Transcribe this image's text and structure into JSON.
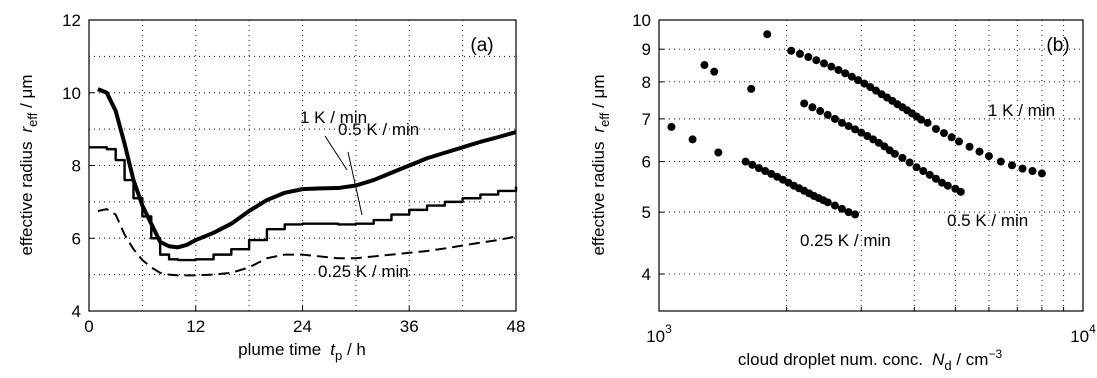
{
  "chart_data": [
    {
      "type": "line",
      "panel_label": "(a)",
      "xlabel": {
        "main": "plume time",
        "var": "t",
        "sub": "p",
        "unit": " / h"
      },
      "ylabel": {
        "main": "effective radius",
        "var": "r",
        "sub": "eff",
        "unit": " / μm"
      },
      "xlim": [
        0,
        48
      ],
      "ylim": [
        4,
        12
      ],
      "xticks": [
        0,
        12,
        24,
        36,
        48
      ],
      "yticks": [
        4,
        6,
        8,
        10,
        12
      ],
      "xgrid": [
        6,
        12,
        18,
        24,
        30,
        36,
        42,
        48
      ],
      "ygrid": [
        5,
        6,
        7,
        8,
        9,
        10,
        11,
        12
      ],
      "series": [
        {
          "name": "1 K / min",
          "style": "thick",
          "x": [
            1,
            2,
            3,
            4,
            5,
            6,
            7,
            8,
            9,
            10,
            11,
            12,
            14,
            16,
            18,
            20,
            22,
            24,
            26,
            28,
            30,
            32,
            34,
            36,
            38,
            40,
            42,
            44,
            46,
            48
          ],
          "y": [
            10.1,
            10.0,
            9.5,
            8.6,
            7.6,
            6.9,
            6.4,
            5.9,
            5.78,
            5.75,
            5.82,
            5.95,
            6.15,
            6.4,
            6.75,
            7.05,
            7.25,
            7.35,
            7.37,
            7.38,
            7.45,
            7.6,
            7.8,
            8.0,
            8.2,
            8.35,
            8.5,
            8.65,
            8.78,
            8.92
          ]
        },
        {
          "name": "0.5 K / min",
          "style": "stepped",
          "x": [
            0,
            2,
            3,
            4,
            5,
            6,
            7,
            8,
            9,
            10,
            12,
            14,
            16,
            18,
            20,
            22,
            24,
            26,
            28,
            30,
            32,
            34,
            36,
            38,
            40,
            42,
            44,
            46,
            48
          ],
          "y": [
            8.5,
            8.45,
            8.15,
            7.6,
            7.1,
            6.6,
            6.0,
            5.55,
            5.42,
            5.4,
            5.42,
            5.55,
            5.7,
            5.95,
            6.25,
            6.38,
            6.4,
            6.4,
            6.38,
            6.4,
            6.5,
            6.65,
            6.78,
            6.9,
            7.0,
            7.1,
            7.2,
            7.3,
            7.42
          ]
        },
        {
          "name": "0.25 K / min",
          "style": "dashed",
          "x": [
            1,
            2,
            3,
            4,
            5,
            6,
            7,
            8,
            9,
            10,
            12,
            14,
            16,
            18,
            20,
            22,
            24,
            26,
            28,
            30,
            32,
            34,
            36,
            38,
            40,
            42,
            44,
            46,
            48
          ],
          "y": [
            6.75,
            6.8,
            6.65,
            6.1,
            5.7,
            5.4,
            5.2,
            5.05,
            5.0,
            4.98,
            4.98,
            5.0,
            5.05,
            5.2,
            5.45,
            5.55,
            5.55,
            5.5,
            5.45,
            5.45,
            5.5,
            5.55,
            5.6,
            5.65,
            5.72,
            5.8,
            5.88,
            5.95,
            6.05
          ]
        }
      ],
      "annotations": [
        {
          "text": "1 K / min"
        },
        {
          "text": "0.5 K / min"
        },
        {
          "text": "0.25 K / min"
        }
      ]
    },
    {
      "type": "scatter",
      "panel_label": "(b)",
      "xscale": "log",
      "yscale": "log",
      "xlabel": {
        "main": "cloud droplet num. conc.",
        "var": "N",
        "sub": "d",
        "unit": " / cm",
        "sup": "−3"
      },
      "ylabel": {
        "main": "effective radius",
        "var": "r",
        "sub": "eff",
        "unit": " / μm"
      },
      "xlim": [
        1000,
        10000
      ],
      "ylim": [
        3.5,
        10
      ],
      "xticks": [
        {
          "base": "10",
          "exp": "3",
          "value": 1000
        },
        {
          "base": "10",
          "exp": "4",
          "value": 10000
        }
      ],
      "yticks": [
        4,
        5,
        6,
        7,
        8,
        9,
        10
      ],
      "xgrid": [
        2000,
        3000,
        4000,
        5000,
        6000,
        7000,
        8000,
        9000
      ],
      "ygrid": [
        4,
        5,
        6,
        7,
        8,
        9,
        10
      ],
      "series": [
        {
          "name": "1 K / min",
          "x": [
            1800,
            2050,
            2150,
            2250,
            2350,
            2450,
            2550,
            2650,
            2750,
            2850,
            2950,
            3050,
            3150,
            3250,
            3350,
            3450,
            3550,
            3650,
            3750,
            3850,
            3950,
            4050,
            4150,
            4300,
            4500,
            4700,
            4900,
            5100,
            5400,
            5700,
            6000,
            6400,
            6800,
            7200,
            7600,
            8000
          ],
          "y": [
            9.5,
            8.95,
            8.85,
            8.75,
            8.65,
            8.55,
            8.45,
            8.35,
            8.25,
            8.15,
            8.05,
            7.95,
            7.85,
            7.75,
            7.65,
            7.56,
            7.47,
            7.38,
            7.3,
            7.22,
            7.14,
            7.06,
            6.98,
            6.9,
            6.75,
            6.65,
            6.55,
            6.45,
            6.33,
            6.22,
            6.12,
            6.0,
            5.92,
            5.85,
            5.8,
            5.75
          ]
        },
        {
          "name": "0.5 K / min",
          "x": [
            1280,
            1350,
            1650,
            2200,
            2300,
            2400,
            2500,
            2600,
            2700,
            2800,
            2900,
            3000,
            3100,
            3200,
            3300,
            3400,
            3500,
            3600,
            3750,
            3900,
            4050,
            4200,
            4350,
            4500,
            4650,
            4800,
            5000,
            5150
          ],
          "y": [
            8.5,
            8.3,
            7.8,
            7.4,
            7.3,
            7.2,
            7.1,
            7.0,
            6.9,
            6.82,
            6.74,
            6.66,
            6.58,
            6.5,
            6.42,
            6.34,
            6.25,
            6.17,
            6.08,
            5.98,
            5.88,
            5.8,
            5.72,
            5.64,
            5.56,
            5.5,
            5.44,
            5.38
          ]
        },
        {
          "name": "0.25 K / min",
          "x": [
            1070,
            1200,
            1380,
            1600,
            1660,
            1720,
            1780,
            1840,
            1900,
            1960,
            2020,
            2080,
            2140,
            2200,
            2260,
            2320,
            2380,
            2440,
            2500,
            2600,
            2700,
            2800,
            2900
          ],
          "y": [
            6.8,
            6.5,
            6.2,
            6.0,
            5.93,
            5.86,
            5.8,
            5.74,
            5.68,
            5.62,
            5.56,
            5.5,
            5.45,
            5.4,
            5.35,
            5.3,
            5.26,
            5.22,
            5.18,
            5.12,
            5.06,
            5.0,
            4.96
          ]
        }
      ],
      "annotations": [
        {
          "text": "1 K / min"
        },
        {
          "text": "0.5 K / min"
        },
        {
          "text": "0.25 K / min"
        }
      ]
    }
  ]
}
